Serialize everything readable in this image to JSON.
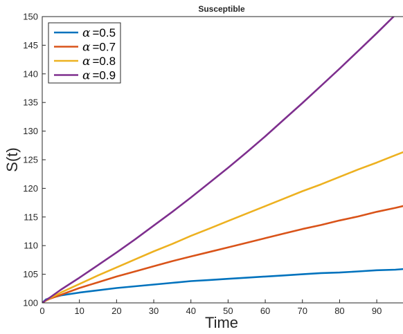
{
  "chart_data": {
    "type": "line",
    "title": "Susceptible",
    "xlabel": "Time",
    "ylabel": "S(t)",
    "xlim": [
      0,
      99
    ],
    "ylim": [
      100,
      150
    ],
    "xticks": [
      0,
      10,
      20,
      30,
      40,
      50,
      60,
      70,
      80,
      90
    ],
    "yticks": [
      100,
      105,
      110,
      115,
      120,
      125,
      130,
      135,
      140,
      145,
      150
    ],
    "grid": false,
    "legend_position": "top-left",
    "x": [
      0,
      1,
      2,
      5,
      10,
      15,
      20,
      25,
      30,
      35,
      40,
      45,
      50,
      55,
      60,
      65,
      70,
      75,
      80,
      85,
      90,
      95,
      99
    ],
    "series": [
      {
        "name": "α =0.5",
        "legend_symbol": "α",
        "legend_value": "=0.5",
        "color": "#0072BD",
        "values": [
          100,
          100.6,
          100.8,
          101.3,
          101.8,
          102.2,
          102.6,
          102.9,
          103.2,
          103.5,
          103.8,
          104.0,
          104.2,
          104.4,
          104.6,
          104.8,
          105.0,
          105.2,
          105.3,
          105.5,
          105.7,
          105.8,
          106.0
        ]
      },
      {
        "name": "α =0.7",
        "legend_symbol": "α",
        "legend_value": "=0.7",
        "color": "#D95319",
        "values": [
          100,
          100.4,
          100.7,
          101.4,
          102.6,
          103.6,
          104.6,
          105.5,
          106.4,
          107.3,
          108.1,
          108.9,
          109.7,
          110.5,
          111.3,
          112.1,
          112.9,
          113.6,
          114.4,
          115.1,
          115.9,
          116.6,
          117.2
        ]
      },
      {
        "name": "α =0.8",
        "legend_symbol": "α",
        "legend_value": "=0.8",
        "color": "#EDB120",
        "values": [
          100,
          100.4,
          100.8,
          101.8,
          103.3,
          104.8,
          106.2,
          107.6,
          109.0,
          110.3,
          111.7,
          113.0,
          114.3,
          115.6,
          116.9,
          118.2,
          119.5,
          120.7,
          122.0,
          123.3,
          124.5,
          125.8,
          126.8
        ]
      },
      {
        "name": "α =0.9",
        "legend_symbol": "α",
        "legend_value": "=0.9",
        "color": "#7E2F8E",
        "values": [
          100,
          100.5,
          100.9,
          102.3,
          104.4,
          106.6,
          108.8,
          111.1,
          113.5,
          115.9,
          118.4,
          121.0,
          123.6,
          126.3,
          129.1,
          132.0,
          134.9,
          137.9,
          140.9,
          144.0,
          147.1,
          150.3,
          152.9
        ]
      }
    ]
  }
}
